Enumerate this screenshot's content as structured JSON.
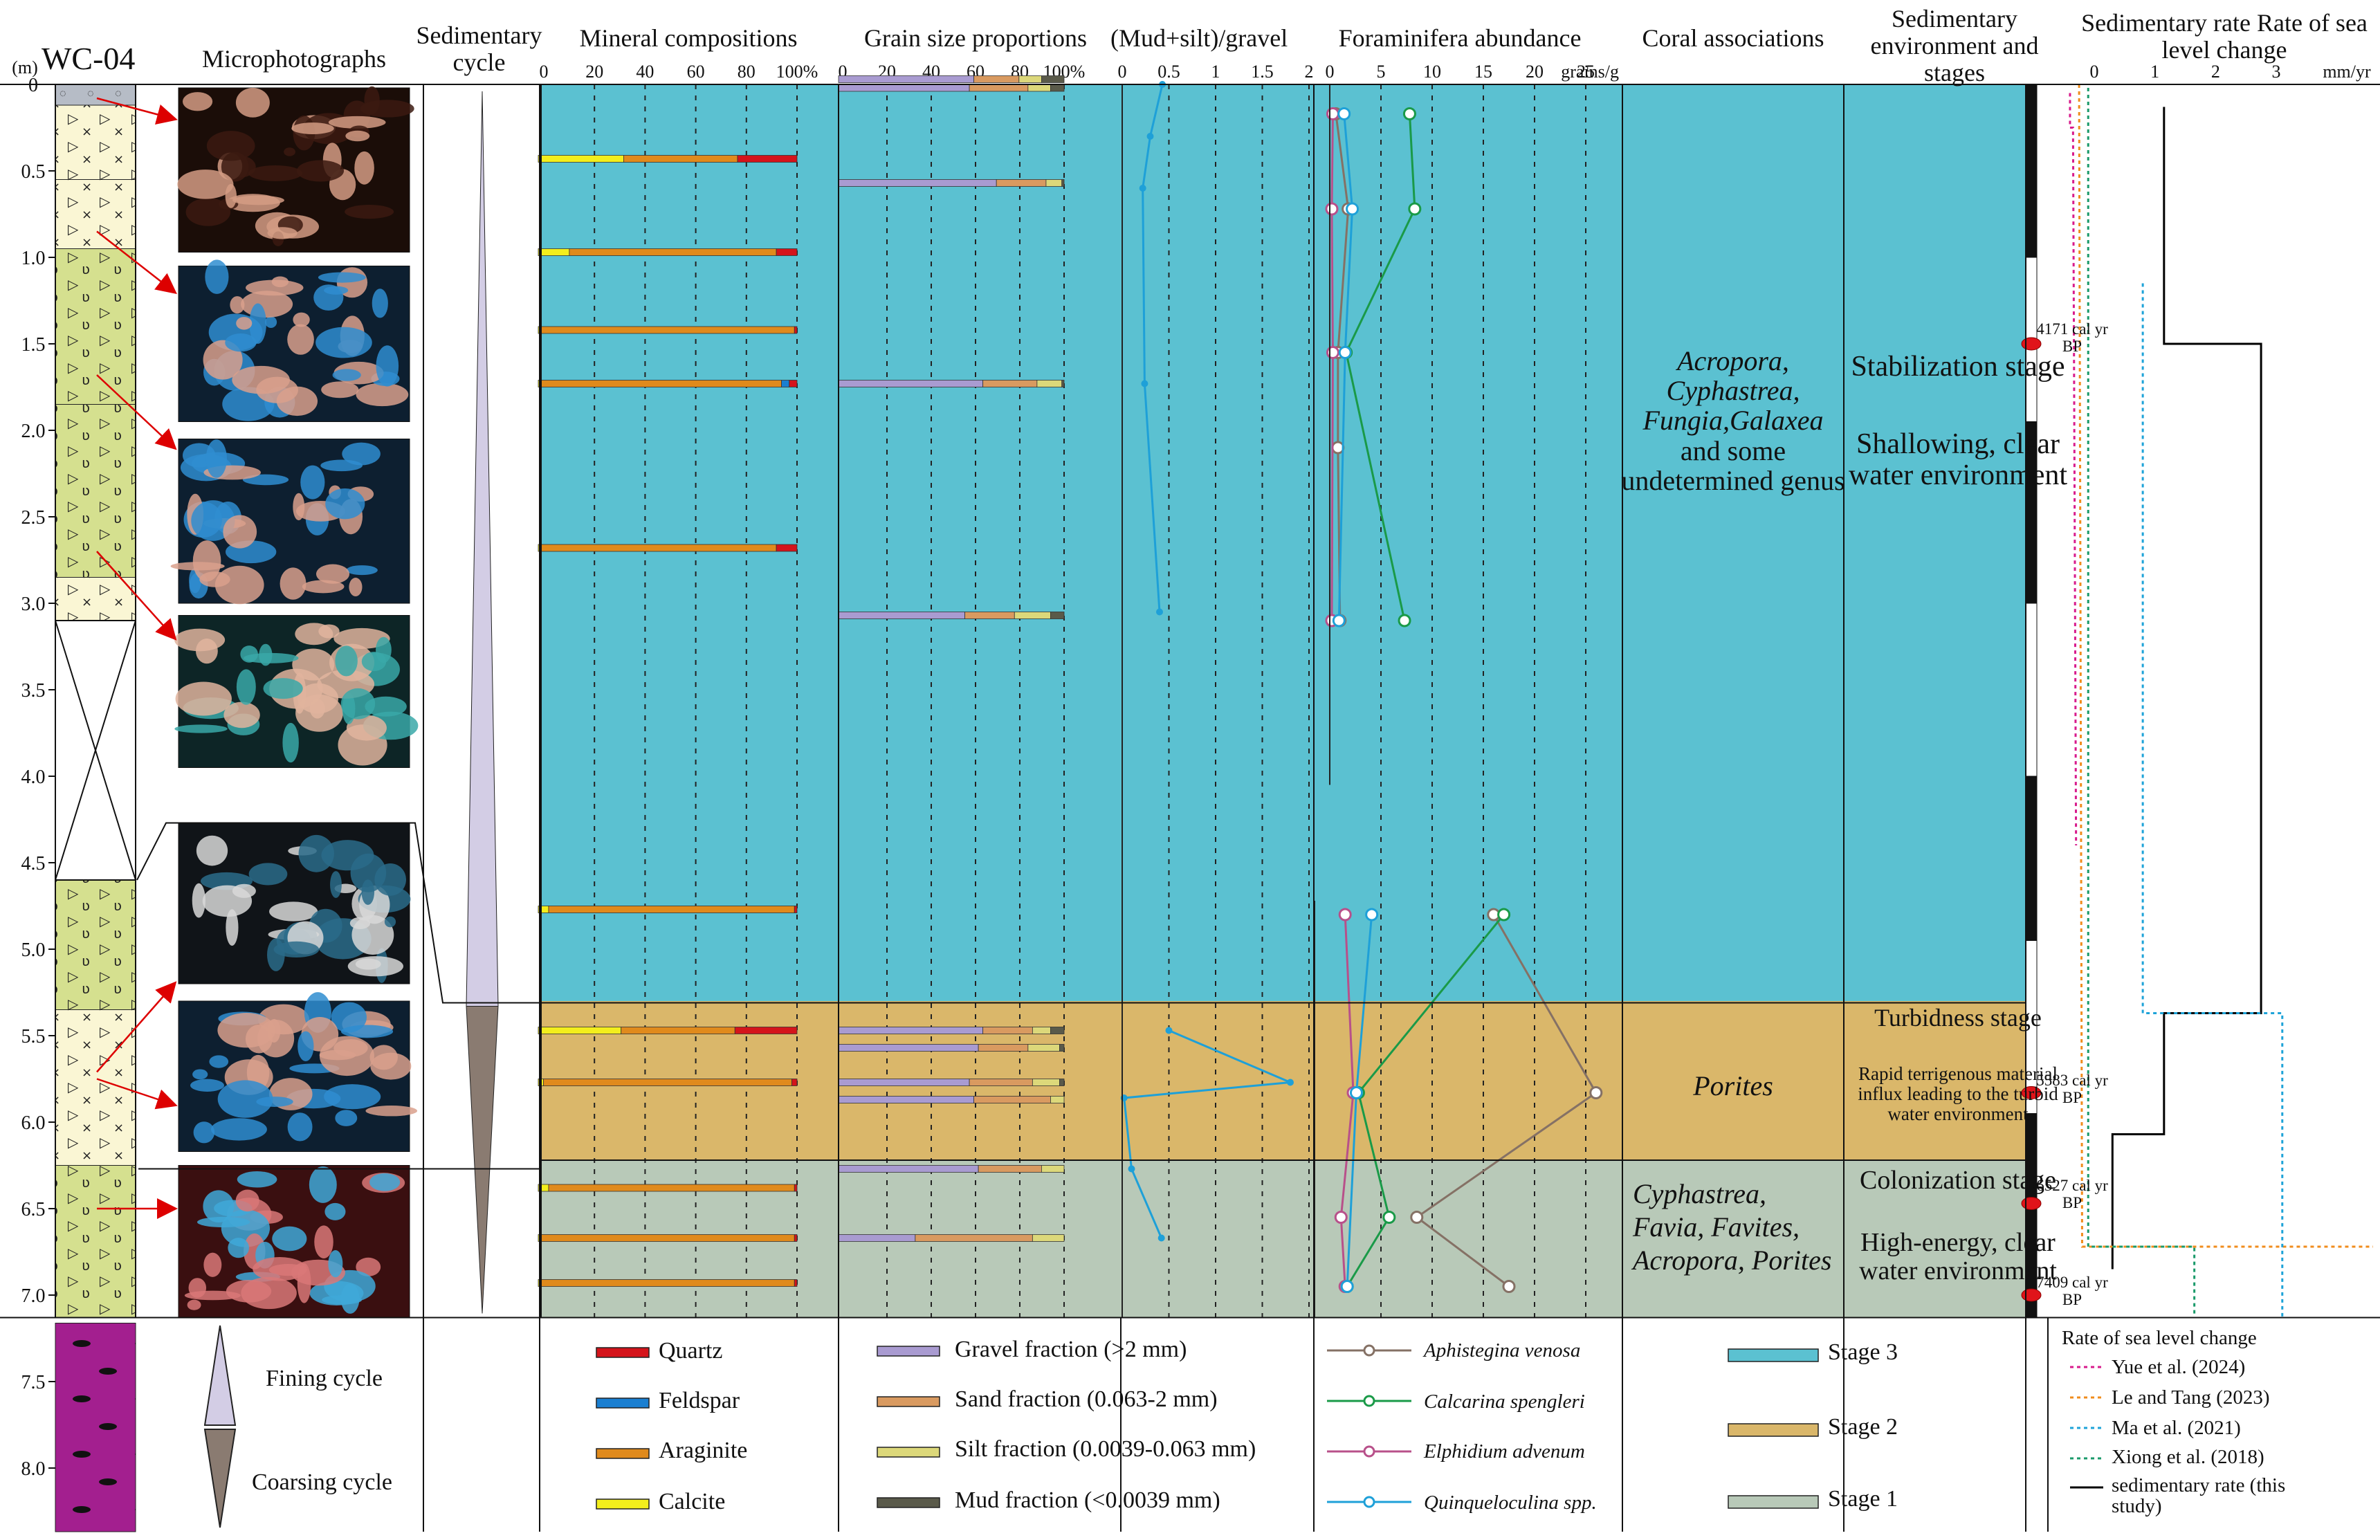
{
  "core_id": "WC-04",
  "depth_unit": "(m)",
  "depth_ticks": [
    "0",
    "0.5",
    "1.0",
    "1.5",
    "2.0",
    "2.5",
    "3.0",
    "3.5",
    "4.0",
    "4.5",
    "5.0",
    "5.5",
    "6.0",
    "6.5",
    "7.0",
    "7.5",
    "8.0"
  ],
  "headers": {
    "microphotographs": "Microphotographs",
    "sedimentary_cycle": "Sedimentary cycle",
    "mineral": "Mineral compositions",
    "grain": "Grain size proportions",
    "ratio": "(Mud+silt)/gravel",
    "foram": "Foraminifera abundance",
    "coral": "Coral associations",
    "environment": "Sedimentary environment and stages",
    "rate": "Sedimentary rate Rate of sea level change"
  },
  "axes": {
    "mineral_ticks": [
      "0",
      "20",
      "40",
      "60",
      "80",
      "100%"
    ],
    "grain_ticks": [
      "0",
      "20",
      "40",
      "60",
      "80",
      "100%"
    ],
    "ratio_ticks": [
      "0",
      "0.5",
      "1",
      "1.5",
      "2"
    ],
    "foram_ticks": [
      "0",
      "5",
      "10",
      "15",
      "20",
      "25"
    ],
    "foram_unit": "grains/g",
    "rate_ticks": [
      "0",
      "1",
      "2",
      "3"
    ],
    "rate_unit": "mm/yr"
  },
  "colors": {
    "stage3": "#5bc1d1",
    "stage2": "#dab76a",
    "stage1": "#b8c9b8",
    "quartz": "#d4141b",
    "feldspar": "#1a7fd1",
    "aragonite": "#e08a1c",
    "calcite": "#f3ee1c",
    "gravel": "#a99bd1",
    "sand": "#d99a60",
    "silt": "#dcd87a",
    "mud": "#5a5a4a",
    "aphistegina": "#857165",
    "calcarina": "#1a9a48",
    "elphidium": "#b8508a",
    "quinqueloculina": "#1ea0d8",
    "yue": "#d81b8c",
    "le_tang": "#f08c1c",
    "ma": "#1ea3d8",
    "xiong": "#1a9a6a",
    "sed_rate": "#000000"
  },
  "stages": [
    {
      "name": "Stage 3",
      "top_m": 0,
      "bottom_m": 5.3,
      "color_key": "stage3"
    },
    {
      "name": "Stage 2",
      "top_m": 5.3,
      "bottom_m": 6.22,
      "color_key": "stage2"
    },
    {
      "name": "Stage 1",
      "top_m": 6.22,
      "bottom_m": 7.13,
      "color_key": "stage1"
    }
  ],
  "coral_associations": [
    {
      "text": "Acropora, Cyphastrea, Fungia,Galaxea",
      "extra": "and some undetermined genus",
      "stage": "Stage 3"
    },
    {
      "text": "Porites",
      "extra": "",
      "stage": "Stage 2"
    },
    {
      "text": "Cyphastrea, Favia, Favites, Acropora, Porites",
      "extra": "",
      "stage": "Stage 1"
    }
  ],
  "environment": [
    {
      "stage_title": "Stabilization stage",
      "desc": "Shallowing, clear water environment"
    },
    {
      "stage_title": "Turbidness stage",
      "desc": "Rapid terrigenous material influx leading to the turbid water environment"
    },
    {
      "stage_title": "Colonization stage",
      "desc": "High-energy, clear water environment"
    }
  ],
  "dates": [
    {
      "label": "4171 cal yr BP",
      "depth_m": 1.5
    },
    {
      "label": "5583 cal yr BP",
      "depth_m": 5.83
    },
    {
      "label": "6527 cal yr BP",
      "depth_m": 6.47
    },
    {
      "label": "7409 cal yr BP",
      "depth_m": 7.0
    }
  ],
  "chart_data": [
    {
      "type": "bar",
      "title": "Mineral compositions",
      "stacked": true,
      "unit": "%",
      "depths_m": [
        0.43,
        0.97,
        1.42,
        1.73,
        2.68,
        4.77,
        5.47,
        5.77,
        6.38,
        6.67,
        6.93
      ],
      "series": [
        {
          "name": "Calcite",
          "values": [
            33,
            12,
            1,
            1,
            1,
            4,
            32,
            2,
            4,
            1,
            1
          ]
        },
        {
          "name": "Araginite",
          "values": [
            44,
            80,
            98,
            93,
            91,
            95,
            44,
            96,
            95,
            98,
            98
          ]
        },
        {
          "name": "Feldspar",
          "values": [
            0,
            0,
            0,
            3,
            0,
            0,
            0,
            0,
            0,
            0,
            0
          ]
        },
        {
          "name": "Quartz",
          "values": [
            23,
            8,
            1,
            3,
            8,
            1,
            24,
            2,
            1,
            1,
            1
          ]
        }
      ]
    },
    {
      "type": "bar",
      "title": "Grain size proportions",
      "stacked": true,
      "unit": "%",
      "depths_m": [
        -0.03,
        0.02,
        0.57,
        1.73,
        3.07,
        5.47,
        5.57,
        5.77,
        5.87,
        6.27,
        6.67
      ],
      "series": [
        {
          "name": "Gravel fraction (>2 mm)",
          "values": [
            60,
            58,
            70,
            64,
            56,
            64,
            62,
            58,
            60,
            62,
            34
          ]
        },
        {
          "name": "Sand fraction (0.063-2 mm)",
          "values": [
            20,
            26,
            22,
            24,
            22,
            22,
            22,
            28,
            34,
            28,
            52
          ]
        },
        {
          "name": "Silt fraction (0.0039-0.063 mm)",
          "values": [
            10,
            10,
            7,
            11,
            16,
            8,
            14,
            12,
            6,
            10,
            14
          ]
        },
        {
          "name": "Mud fraction (<0.0039 mm)",
          "values": [
            10,
            6,
            1,
            1,
            6,
            6,
            2,
            2,
            0,
            0,
            0
          ]
        }
      ]
    },
    {
      "type": "line",
      "title": "(Mud+silt)/gravel",
      "x_range": [
        0,
        2
      ],
      "series": [
        {
          "name": "",
          "points": [
            [
              0.43,
              0.0
            ],
            [
              0.3,
              0.3
            ],
            [
              0.22,
              0.6
            ],
            [
              0.24,
              1.73
            ],
            [
              0.4,
              3.05
            ]
          ]
        },
        {
          "name": "",
          "points": [
            [
              0.5,
              5.47
            ],
            [
              1.8,
              5.77
            ],
            [
              0.02,
              5.86
            ],
            [
              0.1,
              6.27
            ],
            [
              0.42,
              6.67
            ]
          ]
        }
      ]
    },
    {
      "type": "line",
      "title": "Foraminifera abundance",
      "unit": "grains/g",
      "x_range": [
        0,
        25
      ],
      "series": [
        {
          "name": "Aphistegina venosa",
          "points": [
            [
              0.6,
              0.17
            ],
            [
              1.8,
              0.72
            ],
            [
              0.8,
              1.55
            ],
            [
              0.8,
              2.1
            ],
            [
              1.0,
              3.1
            ],
            [
              16.0,
              4.8
            ],
            [
              26.0,
              5.83
            ],
            [
              8.5,
              6.55
            ],
            [
              17.5,
              6.95
            ]
          ]
        },
        {
          "name": "Calcarina spengleri",
          "points": [
            [
              7.8,
              0.17
            ],
            [
              8.3,
              0.72
            ],
            [
              1.6,
              1.55
            ],
            [
              7.3,
              3.1
            ],
            [
              17.0,
              4.8
            ],
            [
              2.8,
              5.83
            ],
            [
              5.8,
              6.55
            ],
            [
              1.7,
              6.95
            ]
          ]
        },
        {
          "name": "Elphidium advenum",
          "points": [
            [
              0.3,
              0.17
            ],
            [
              0.2,
              0.72
            ],
            [
              0.3,
              1.55
            ],
            [
              0.2,
              3.1
            ],
            [
              1.5,
              4.8
            ],
            [
              2.3,
              5.83
            ],
            [
              1.1,
              6.55
            ],
            [
              1.5,
              6.95
            ]
          ]
        },
        {
          "name": "Quinqueloculina spp.",
          "points": [
            [
              1.4,
              0.17
            ],
            [
              2.2,
              0.72
            ],
            [
              1.5,
              1.55
            ],
            [
              0.9,
              3.1
            ],
            [
              4.1,
              4.8
            ],
            [
              2.6,
              5.83
            ],
            [
              1.7,
              6.95
            ]
          ]
        }
      ]
    },
    {
      "type": "line",
      "title": "Sedimentary rate / Rate of sea level change",
      "unit": "mm/yr",
      "x_range": [
        0,
        3.5
      ],
      "series": [
        {
          "name": "sedimentary rate (this study)",
          "points": [
            [
              1.15,
              0.13
            ],
            [
              1.15,
              1.5
            ],
            [
              2.75,
              1.5
            ],
            [
              2.75,
              5.37
            ],
            [
              1.15,
              5.37
            ],
            [
              1.15,
              6.07
            ],
            [
              0.3,
              6.07
            ],
            [
              0.3,
              6.85
            ]
          ]
        },
        {
          "name": "Yue et al. (2024)",
          "points": [
            [
              -0.4,
              0.05
            ],
            [
              -0.4,
              0.25
            ],
            [
              -0.35,
              0.25
            ],
            [
              -0.3,
              4.4
            ]
          ]
        },
        {
          "name": "Le and Tang (2023)",
          "points": [
            [
              -0.25,
              0.0
            ],
            [
              -0.2,
              6.72
            ],
            [
              5.0,
              6.72
            ]
          ]
        },
        {
          "name": "Ma et al. (2021)",
          "points": [
            [
              0.8,
              1.15
            ],
            [
              0.8,
              5.37
            ],
            [
              3.1,
              5.37
            ],
            [
              3.1,
              7.13
            ]
          ]
        },
        {
          "name": "Xiong et al. (2018)",
          "points": [
            [
              -0.1,
              0.02
            ],
            [
              -0.1,
              6.72
            ],
            [
              1.65,
              6.72
            ],
            [
              1.65,
              7.13
            ]
          ]
        }
      ]
    }
  ],
  "legends": {
    "mineral": [
      "Quartz",
      "Feldspar",
      "Araginite",
      "Calcite"
    ],
    "grain": [
      "Gravel fraction (>2 mm)",
      "Sand fraction (0.063-2 mm)",
      "Silt fraction (0.0039-0.063 mm)",
      "Mud fraction (<0.0039 mm)"
    ],
    "foram": [
      "Aphistegina venosa",
      "Calcarina spengleri",
      "Elphidium advenum",
      "Quinqueloculina spp."
    ],
    "stages": [
      "Stage 3",
      "Stage 2",
      "Stage 1"
    ],
    "cycle": [
      "Fining cycle",
      "Coarsing cycle"
    ],
    "rate_title": "Rate of sea level change",
    "rate": [
      "Yue et al. (2024)",
      "Le and Tang (2023)",
      "Ma et al. (2021)",
      "Xiong et al. (2018)",
      "sedimentary rate (this study)"
    ]
  },
  "microphotographs": [
    {
      "name": "photo-1",
      "tone": "pink-brown"
    },
    {
      "name": "photo-2",
      "tone": "blue-pink"
    },
    {
      "name": "photo-3",
      "tone": "blue-pink"
    },
    {
      "name": "photo-4",
      "tone": "teal-pink"
    },
    {
      "name": "photo-5",
      "tone": "dark-clast"
    },
    {
      "name": "photo-6",
      "tone": "blue-pink"
    },
    {
      "name": "photo-7",
      "tone": "red-blue"
    }
  ]
}
